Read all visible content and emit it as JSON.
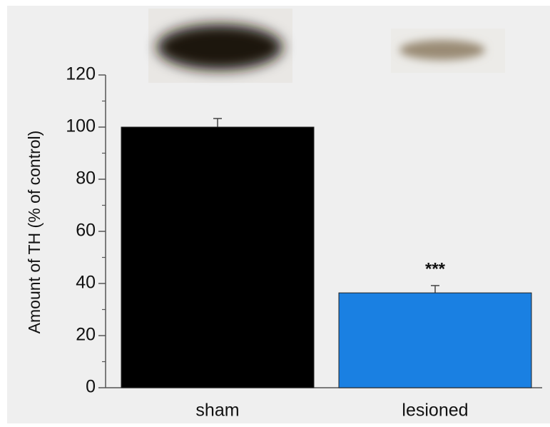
{
  "chart_data": {
    "type": "bar",
    "y_label": "Amount of TH (% of control)",
    "categories": [
      "sham",
      "lesioned"
    ],
    "values": [
      100,
      36.4
    ],
    "errors": [
      3.3,
      2.8
    ],
    "colors": [
      "#000000",
      "#1a80e2"
    ],
    "annotations": [
      "***"
    ],
    "ylim": [
      0,
      120
    ],
    "yticks": [
      0,
      20,
      40,
      60,
      80,
      100,
      120
    ],
    "yminorticks": [
      10,
      30,
      50,
      70,
      90,
      110
    ],
    "grid": false
  }
}
